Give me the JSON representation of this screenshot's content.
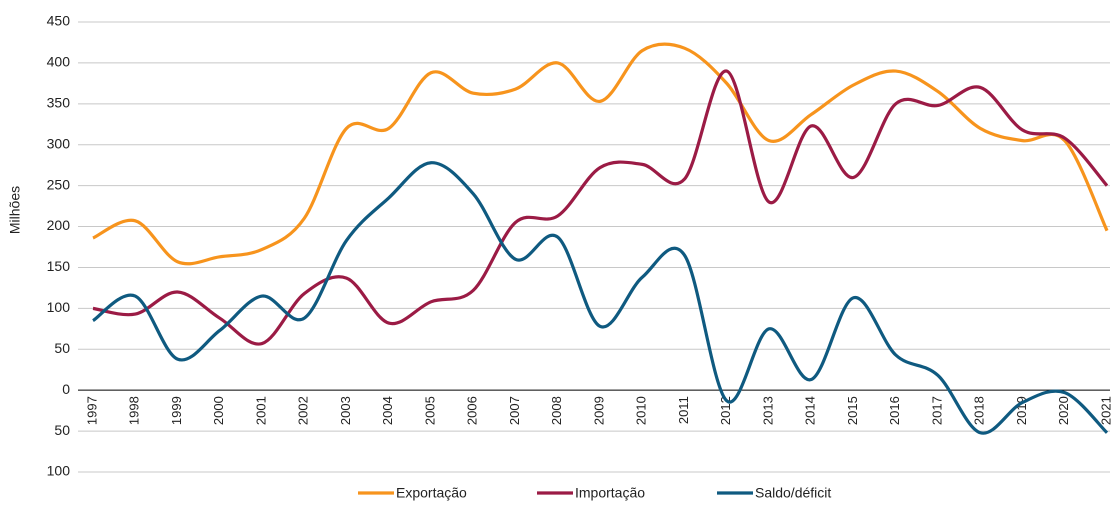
{
  "chart_data": {
    "type": "line",
    "y_label": "Milhões",
    "categories": [
      "1997",
      "1998",
      "1999",
      "2000",
      "2001",
      "2002",
      "2003",
      "2004",
      "2005",
      "2006",
      "2007",
      "2008",
      "2009",
      "2010",
      "2011",
      "2012",
      "2013",
      "2014",
      "2015",
      "2016",
      "2017",
      "2018",
      "2019",
      "2020",
      "2021"
    ],
    "series": [
      {
        "name": "Exportação",
        "color": "#f7941d",
        "values": [
          186,
          207,
          157,
          163,
          172,
          210,
          320,
          320,
          388,
          363,
          368,
          400,
          353,
          415,
          418,
          375,
          305,
          337,
          373,
          390,
          365,
          320,
          305,
          305,
          195
        ]
      },
      {
        "name": "Importação",
        "color": "#9b1b45",
        "values": [
          100,
          93,
          120,
          88,
          57,
          118,
          137,
          82,
          108,
          122,
          205,
          213,
          272,
          276,
          258,
          390,
          230,
          323,
          260,
          350,
          348,
          370,
          318,
          308,
          250
        ]
      },
      {
        "name": "Saldo/déficit",
        "color": "#0f5a80",
        "values": [
          85,
          115,
          38,
          73,
          115,
          88,
          183,
          235,
          278,
          240,
          160,
          187,
          78,
          138,
          165,
          -13,
          75,
          13,
          113,
          43,
          18,
          -52,
          -15,
          -3,
          -52
        ]
      }
    ],
    "ylim": [
      -100,
      450
    ],
    "yticks": [
      {
        "value": -100,
        "label": "100"
      },
      {
        "value": -50,
        "label": "50"
      },
      0,
      50,
      100,
      150,
      200,
      250,
      300,
      350,
      400,
      450
    ],
    "grid": true,
    "legend": "bottom"
  }
}
